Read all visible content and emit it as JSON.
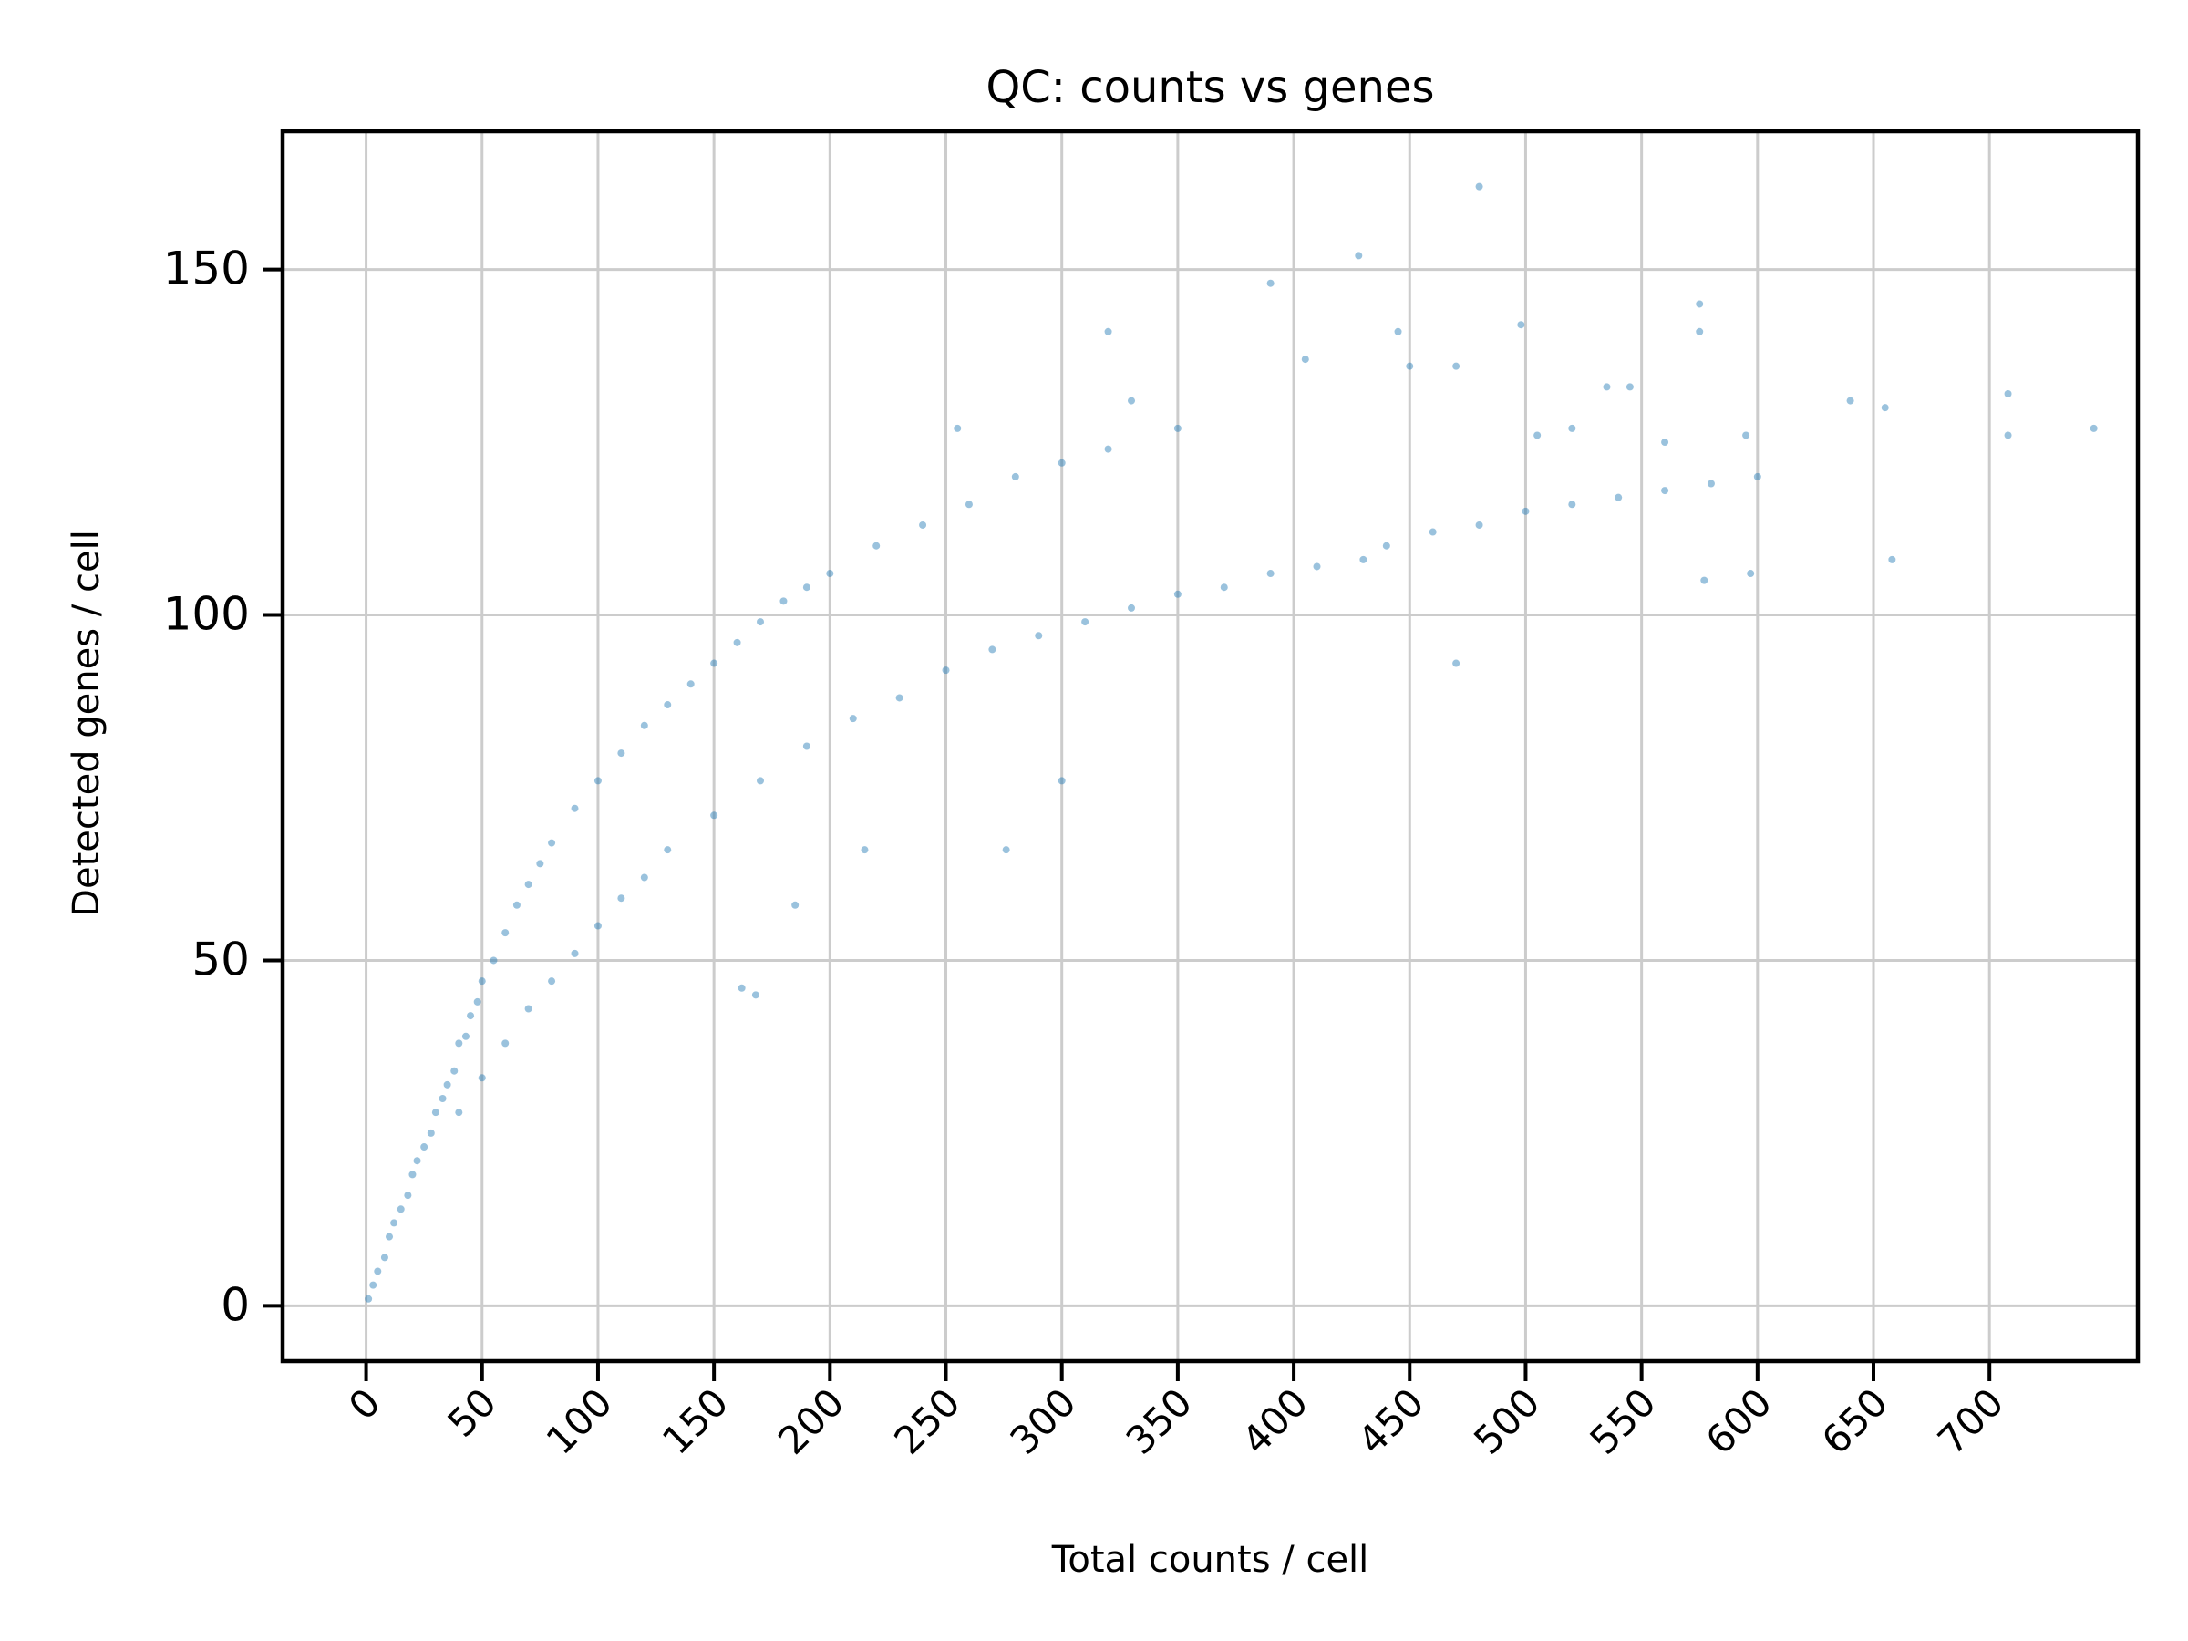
{
  "chart_data": {
    "type": "scatter",
    "title": "QC: counts vs genes",
    "xlabel": "Total counts / cell",
    "ylabel": "Detected genes / cell",
    "xlim": [
      -36,
      764
    ],
    "ylim": [
      -8,
      170
    ],
    "x_ticks": [
      0,
      50,
      100,
      150,
      200,
      250,
      300,
      350,
      400,
      450,
      500,
      550,
      600,
      650,
      700
    ],
    "x_tick_labels": [
      "0",
      "50",
      "100",
      "150",
      "200",
      "250",
      "300",
      "350",
      "400",
      "450",
      "500",
      "550",
      "600",
      "650",
      "700"
    ],
    "y_ticks": [
      0,
      50,
      100,
      150
    ],
    "y_tick_labels": [
      "0",
      "50",
      "100",
      "150"
    ],
    "grid": true,
    "legend": "none",
    "point_color": "#1f77b4",
    "grid_color": "#cccccc",
    "series": [
      {
        "points": [
          [
            1,
            1
          ],
          [
            3,
            3
          ],
          [
            5,
            5
          ],
          [
            8,
            7
          ],
          [
            10,
            10
          ],
          [
            12,
            12
          ],
          [
            15,
            14
          ],
          [
            18,
            16
          ],
          [
            20,
            19
          ],
          [
            22,
            21
          ],
          [
            25,
            23
          ],
          [
            28,
            25
          ],
          [
            30,
            28
          ],
          [
            33,
            30
          ],
          [
            35,
            32
          ],
          [
            38,
            34
          ],
          [
            40,
            38
          ],
          [
            43,
            39
          ],
          [
            45,
            42
          ],
          [
            48,
            44
          ],
          [
            50,
            47
          ],
          [
            55,
            50
          ],
          [
            60,
            54
          ],
          [
            65,
            58
          ],
          [
            70,
            61
          ],
          [
            75,
            64
          ],
          [
            80,
            67
          ],
          [
            90,
            72
          ],
          [
            100,
            76
          ],
          [
            110,
            80
          ],
          [
            120,
            84
          ],
          [
            130,
            87
          ],
          [
            140,
            90
          ],
          [
            150,
            93
          ],
          [
            160,
            96
          ],
          [
            170,
            99
          ],
          [
            180,
            102
          ],
          [
            190,
            104
          ],
          [
            200,
            106
          ],
          [
            220,
            110
          ],
          [
            240,
            113
          ],
          [
            260,
            116
          ],
          [
            280,
            120
          ],
          [
            300,
            122
          ],
          [
            320,
            124
          ],
          [
            40,
            28
          ],
          [
            50,
            33
          ],
          [
            60,
            38
          ],
          [
            70,
            43
          ],
          [
            80,
            47
          ],
          [
            90,
            51
          ],
          [
            100,
            55
          ],
          [
            110,
            59
          ],
          [
            120,
            62
          ],
          [
            130,
            66
          ],
          [
            150,
            71
          ],
          [
            170,
            76
          ],
          [
            190,
            81
          ],
          [
            210,
            85
          ],
          [
            230,
            88
          ],
          [
            250,
            92
          ],
          [
            270,
            95
          ],
          [
            290,
            97
          ],
          [
            310,
            99
          ],
          [
            330,
            101
          ],
          [
            350,
            103
          ],
          [
            370,
            104
          ],
          [
            390,
            106
          ],
          [
            410,
            107
          ],
          [
            430,
            108
          ],
          [
            440,
            110
          ],
          [
            460,
            112
          ],
          [
            480,
            113
          ],
          [
            500,
            115
          ],
          [
            520,
            116
          ],
          [
            540,
            117
          ],
          [
            560,
            118
          ],
          [
            580,
            119
          ],
          [
            600,
            120
          ],
          [
            168,
            45
          ],
          [
            162,
            46
          ],
          [
            185,
            58
          ],
          [
            215,
            66
          ],
          [
            276,
            66
          ],
          [
            300,
            76
          ],
          [
            470,
            93
          ],
          [
            480,
            162
          ],
          [
            428,
            152
          ],
          [
            390,
            148
          ],
          [
            575,
            145
          ],
          [
            575,
            141
          ],
          [
            445,
            141
          ],
          [
            498,
            142
          ],
          [
            640,
            131
          ],
          [
            655,
            130
          ],
          [
            708,
            132
          ],
          [
            708,
            126
          ],
          [
            745,
            127
          ],
          [
            658,
            108
          ],
          [
            597,
            106
          ],
          [
            577,
            105
          ],
          [
            595,
            126
          ],
          [
            560,
            125
          ],
          [
            545,
            133
          ],
          [
            535,
            133
          ],
          [
            520,
            127
          ],
          [
            505,
            126
          ],
          [
            450,
            136
          ],
          [
            405,
            137
          ],
          [
            320,
            141
          ],
          [
            470,
            136
          ],
          [
            350,
            127
          ],
          [
            330,
            131
          ],
          [
            255,
            127
          ]
        ]
      }
    ]
  }
}
